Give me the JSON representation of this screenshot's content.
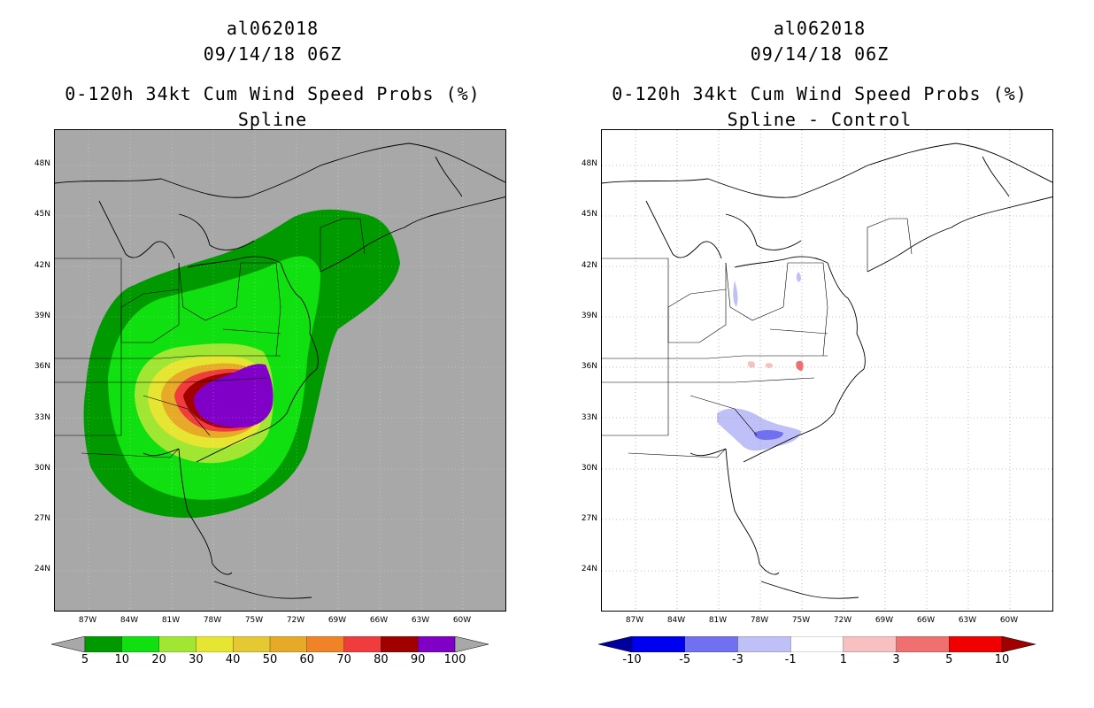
{
  "left": {
    "storm_id": "al062018",
    "datetime": "09/14/18 06Z",
    "product": "0-120h 34kt Cum Wind Speed Probs (%)",
    "subtitle": "Spline",
    "colorbar": {
      "labels": [
        "5",
        "10",
        "20",
        "30",
        "40",
        "50",
        "60",
        "70",
        "80",
        "90",
        "100"
      ],
      "colors": [
        "#d9d9d9",
        "#009a00",
        "#10e010",
        "#a0e632",
        "#e6e632",
        "#e6c832",
        "#e6aa28",
        "#f08228",
        "#f03c3c",
        "#a00000",
        "#8000c8"
      ],
      "end_color": "#a8a8a8"
    }
  },
  "right": {
    "storm_id": "al062018",
    "datetime": "09/14/18 06Z",
    "product": "0-120h 34kt Cum Wind Speed Probs (%)",
    "subtitle": "Spline - Control",
    "colorbar": {
      "labels": [
        "-10",
        "-5",
        "-3",
        "-1",
        "1",
        "3",
        "5",
        "10"
      ],
      "colors": [
        "#0000a0",
        "#0000f0",
        "#7070f0",
        "#c0c0f8",
        "#ffffff",
        "#f8c0c0",
        "#f07070",
        "#f00000",
        "#a00000"
      ]
    }
  },
  "axes": {
    "lat_labels": [
      "48N",
      "45N",
      "42N",
      "39N",
      "36N",
      "33N",
      "30N",
      "27N",
      "24N"
    ],
    "lon_labels": [
      "87W",
      "84W",
      "81W",
      "78W",
      "75W",
      "72W",
      "69W",
      "66W",
      "63W",
      "60W"
    ]
  },
  "colors": {
    "map_bg_left": "#a8a8a8",
    "map_bg_right": "#ffffff"
  }
}
